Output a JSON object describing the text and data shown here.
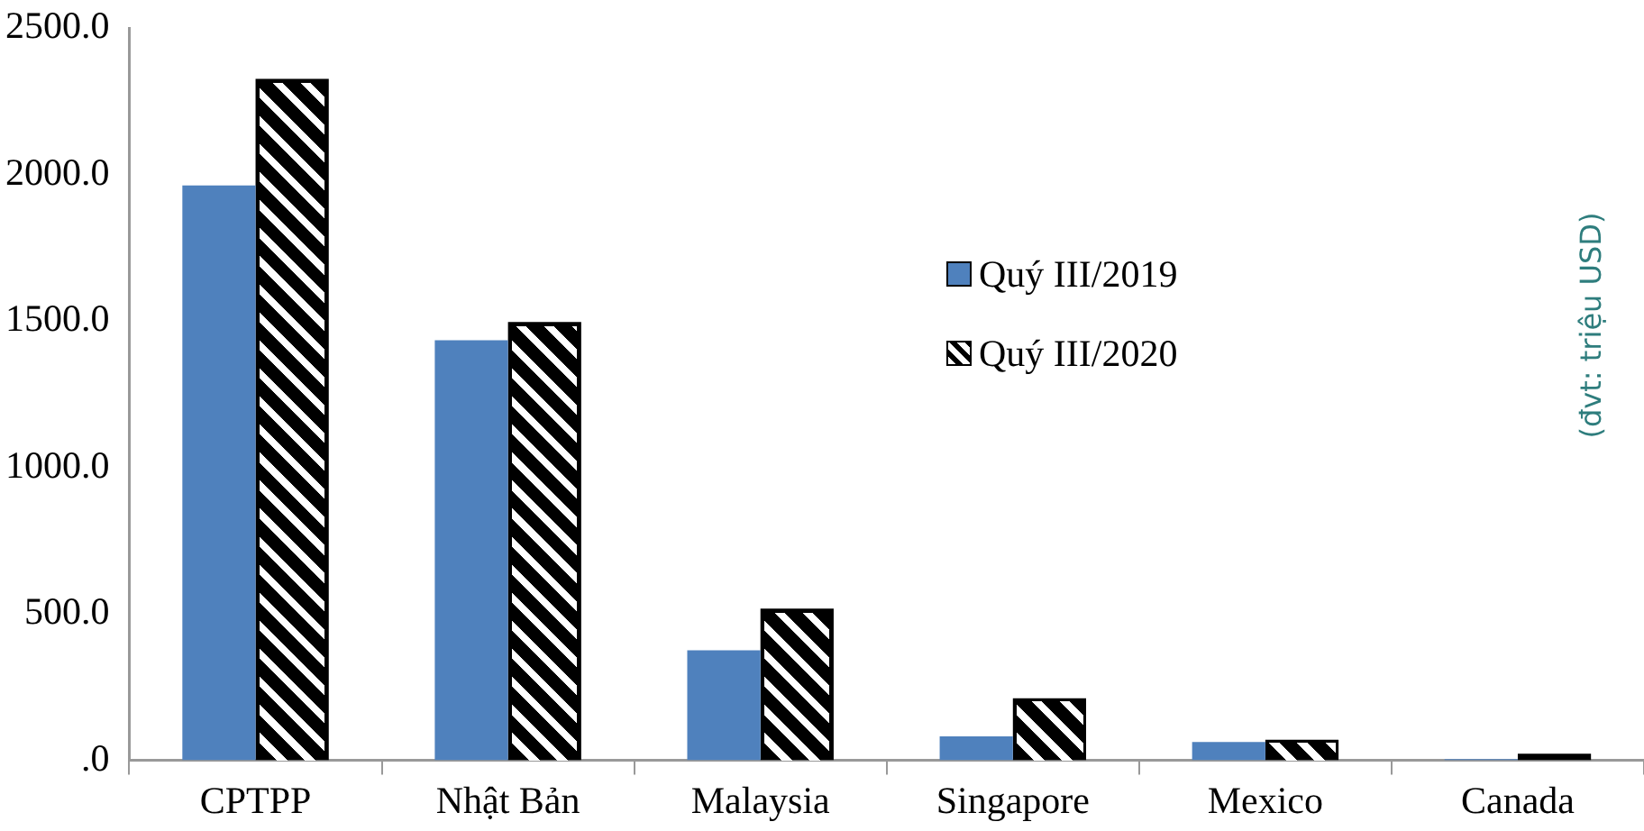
{
  "chart_data": {
    "type": "bar",
    "categories": [
      "CPTPP",
      "Nhật Bản",
      "Malaysia",
      "Singapore",
      "Mexico",
      "Canada"
    ],
    "series": [
      {
        "name": "Quý III/2019",
        "color": "#4f81bd",
        "values": [
          1963,
          1434,
          376,
          82,
          63,
          4
        ]
      },
      {
        "name": "Quý III/2020",
        "color": "#000000",
        "values": [
          2327,
          1497,
          518,
          212,
          70,
          23
        ]
      }
    ],
    "ylim": [
      0,
      2500
    ],
    "yticks": [
      {
        "value": 0,
        "label": ".0"
      },
      {
        "value": 500,
        "label": "500.0"
      },
      {
        "value": 1000,
        "label": "1000.0"
      },
      {
        "value": 1500,
        "label": "1500.0"
      },
      {
        "value": 2000,
        "label": "2000.0"
      },
      {
        "value": 2500,
        "label": "2500.0"
      }
    ],
    "legend": "top right",
    "annotations": [
      "(đvt: triệu USD)"
    ]
  }
}
